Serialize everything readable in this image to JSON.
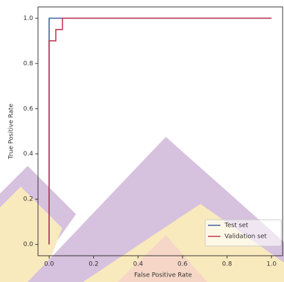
{
  "chart_data": {
    "type": "line",
    "xlabel": "False Positive Rate",
    "ylabel": "True Positive Rate",
    "xlim": [
      -0.05,
      1.05
    ],
    "ylim": [
      -0.05,
      1.05
    ],
    "xticks": [
      {
        "value": 0,
        "label": "0.0"
      },
      {
        "value": 0.2,
        "label": "0.2"
      },
      {
        "value": 0.4,
        "label": "0.4"
      },
      {
        "value": 0.6,
        "label": "0.6"
      },
      {
        "value": 0.8,
        "label": "0.8"
      },
      {
        "value": 1,
        "label": "1.0"
      }
    ],
    "yticks": [
      {
        "value": 0,
        "label": "0.0"
      },
      {
        "value": 0.2,
        "label": "0.2"
      },
      {
        "value": 0.4,
        "label": "0.4"
      },
      {
        "value": 0.6,
        "label": "0.6"
      },
      {
        "value": 0.8,
        "label": "0.8"
      },
      {
        "value": 1,
        "label": "1.0"
      }
    ],
    "legend": "lower right",
    "series": [
      {
        "name": "Test set",
        "color": "#3a5fa6",
        "x": [
          0,
          0,
          1
        ],
        "values": [
          0,
          1,
          1
        ]
      },
      {
        "name": "Validation set",
        "color": "#c2314d",
        "x": [
          0,
          0,
          0.03,
          0.03,
          0.06,
          0.06,
          1
        ],
        "values": [
          0,
          0.9,
          0.9,
          0.95,
          0.95,
          1,
          1
        ]
      }
    ]
  }
}
